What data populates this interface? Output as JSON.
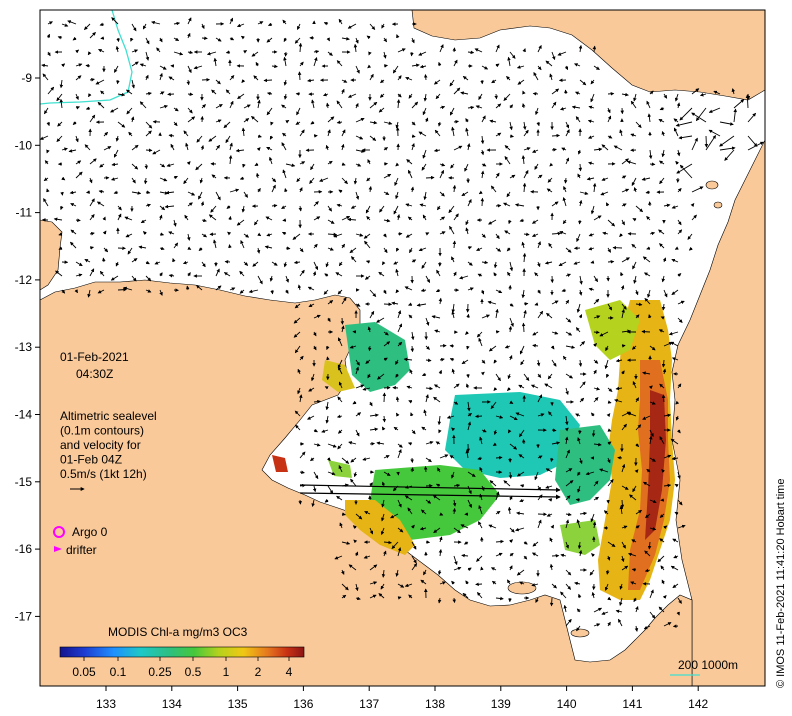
{
  "map": {
    "date": "01-Feb-2021",
    "time": "04:30Z",
    "legend_lines": [
      "Altimetric sealevel",
      "(0.1m contours)",
      "and velocity for",
      "01-Feb 04Z",
      "0.5m/s (1kt 12h)"
    ],
    "argo_label": "Argo 0",
    "drifter_label": "drifter",
    "colorbar_title": "MODIS Chl-a mg/m3 OC3",
    "colorbar_ticks": [
      "0.05",
      "0.1",
      "0.25",
      "0.5",
      "1",
      "2",
      "4"
    ],
    "scale_label": "200  1000m",
    "side_credit": "© IMOS 11-Feb-2021 11:41:20 Hobart time",
    "lon_ticks": [
      "133",
      "134",
      "135",
      "136",
      "137",
      "138",
      "139",
      "140",
      "141",
      "142"
    ],
    "lat_ticks": [
      "-9",
      "-10",
      "-11",
      "-12",
      "-13",
      "-14",
      "-15",
      "-16",
      "-17"
    ],
    "colors": {
      "land": "#f9c99a",
      "ocean": "#ffffff",
      "arrow": "#000000",
      "contour_shelf": "#40e0d0",
      "argo": "#ff00ff"
    }
  }
}
